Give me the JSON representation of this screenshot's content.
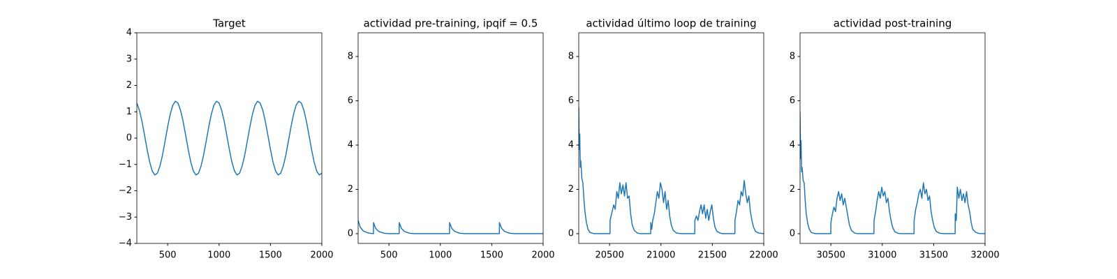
{
  "chart_data": [
    {
      "type": "line",
      "title": "Target",
      "x": [
        200,
        225,
        250,
        275,
        300,
        325,
        350,
        375,
        400,
        425,
        450,
        475,
        500,
        525,
        550,
        575,
        600,
        625,
        650,
        675,
        700,
        725,
        750,
        775,
        800,
        825,
        850,
        875,
        900,
        925,
        950,
        975,
        1000,
        1025,
        1050,
        1075,
        1100,
        1125,
        1150,
        1175,
        1200,
        1225,
        1250,
        1275,
        1300,
        1325,
        1350,
        1375,
        1400,
        1425,
        1450,
        1475,
        1500,
        1525,
        1550,
        1575,
        1600,
        1625,
        1650,
        1675,
        1700,
        1725,
        1750,
        1775,
        1800,
        1825,
        1850,
        1875,
        1900,
        1925,
        1950,
        1975,
        2000
      ],
      "series": [
        {
          "color": "#1f77b4",
          "values": [
            1.33,
            1.06,
            0.64,
            0.11,
            -0.43,
            -0.91,
            -1.25,
            -1.4,
            -1.33,
            -1.06,
            -0.64,
            -0.11,
            0.43,
            0.91,
            1.25,
            1.4,
            1.33,
            1.06,
            0.64,
            0.11,
            -0.43,
            -0.91,
            -1.25,
            -1.4,
            -1.33,
            -1.06,
            -0.64,
            -0.11,
            0.43,
            0.91,
            1.25,
            1.4,
            1.33,
            1.06,
            0.64,
            0.11,
            -0.43,
            -0.91,
            -1.25,
            -1.4,
            -1.33,
            -1.06,
            -0.64,
            -0.11,
            0.43,
            0.91,
            1.25,
            1.4,
            1.33,
            1.06,
            0.64,
            0.11,
            -0.43,
            -0.91,
            -1.25,
            -1.4,
            -1.33,
            -1.06,
            -0.64,
            -0.11,
            0.43,
            0.91,
            1.25,
            1.4,
            1.33,
            1.06,
            0.64,
            0.11,
            -0.43,
            -0.91,
            -1.25,
            -1.4,
            -1.33
          ]
        }
      ],
      "xlim": [
        200,
        2000
      ],
      "xticks": [
        500,
        1000,
        1500,
        2000
      ],
      "ylim": [
        -4,
        4
      ],
      "yticks": [
        {
          "value": -4,
          "label": "−4"
        },
        {
          "value": -3,
          "label": "−3"
        },
        {
          "value": -2,
          "label": "−2"
        },
        {
          "value": -1,
          "label": "−1"
        },
        0,
        1,
        2,
        3,
        4
      ]
    },
    {
      "type": "line",
      "title": "actividad pre-training, ipqif = 0.5",
      "x": [
        200,
        220,
        250,
        300,
        349,
        350,
        370,
        400,
        450,
        500,
        599,
        600,
        620,
        650,
        700,
        750,
        1089,
        1090,
        1110,
        1140,
        1190,
        1240,
        1574,
        1575,
        1595,
        1625,
        1675,
        1725,
        2000
      ],
      "series": [
        {
          "color": "#1f77b4",
          "values": [
            0.6,
            0.3,
            0.12,
            0.03,
            0,
            0.5,
            0.25,
            0.1,
            0.02,
            0,
            0,
            0.5,
            0.25,
            0.1,
            0.02,
            0,
            0,
            0.5,
            0.25,
            0.1,
            0.02,
            0,
            0,
            0.5,
            0.25,
            0.1,
            0.02,
            0,
            0
          ]
        }
      ],
      "xlim": [
        200,
        2000
      ],
      "xticks": [
        500,
        1000,
        1500,
        2000
      ],
      "ylim": [
        -0.44,
        9.07
      ],
      "yticks": [
        0,
        2,
        4,
        6,
        8
      ]
    },
    {
      "type": "line",
      "title": "actividad último loop de training",
      "x": [
        20200,
        20205,
        20210,
        20215,
        20220,
        20230,
        20240,
        20250,
        20260,
        20275,
        20290,
        20310,
        20350,
        20504,
        20505,
        20520,
        20540,
        20555,
        20570,
        20585,
        20600,
        20615,
        20630,
        20645,
        20660,
        20675,
        20690,
        20705,
        20720,
        20740,
        20770,
        20800,
        20900,
        20901,
        20910,
        20920,
        20935,
        20950,
        20965,
        20980,
        20995,
        21010,
        21025,
        21040,
        21055,
        21070,
        21085,
        21100,
        21120,
        21150,
        21200,
        21329,
        21330,
        21345,
        21360,
        21375,
        21390,
        21405,
        21420,
        21435,
        21450,
        21465,
        21480,
        21495,
        21510,
        21525,
        21545,
        21580,
        21600,
        21719,
        21720,
        21735,
        21750,
        21765,
        21780,
        21795,
        21810,
        21825,
        21840,
        21855,
        21870,
        21885,
        21900,
        21920,
        21950,
        22000
      ],
      "series": [
        {
          "color": "#1f77b4",
          "values": [
            5.7,
            3.8,
            4.5,
            3.0,
            3.3,
            2.5,
            2.3,
            1.6,
            1.0,
            0.5,
            0.2,
            0.05,
            0,
            0,
            0.6,
            0.9,
            1.3,
            1.1,
            1.9,
            1.6,
            2.3,
            1.8,
            2.2,
            1.7,
            2.3,
            1.6,
            1.7,
            0.9,
            0.4,
            0.15,
            0.03,
            0,
            0,
            0.5,
            0.2,
            0.6,
            0.9,
            1.4,
            1.9,
            1.6,
            2.3,
            2.0,
            1.4,
            1.9,
            1.1,
            1.5,
            0.8,
            0.4,
            0.15,
            0.03,
            0,
            0,
            0.6,
            0.8,
            0.6,
            1.0,
            1.3,
            0.9,
            1.3,
            0.7,
            1.1,
            0.6,
            1.0,
            1.3,
            0.7,
            0.3,
            0.1,
            0.02,
            0,
            0,
            0.6,
            1.0,
            1.5,
            1.3,
            1.9,
            1.7,
            2.4,
            1.8,
            1.4,
            1.7,
            1.0,
            0.6,
            0.3,
            0.1,
            0.03,
            0
          ]
        }
      ],
      "xlim": [
        20200,
        22000
      ],
      "xticks": [
        20500,
        21000,
        21500,
        22000
      ],
      "ylim": [
        -0.44,
        9.07
      ],
      "yticks": [
        0,
        2,
        4,
        6,
        8
      ]
    },
    {
      "type": "line",
      "title": "actividad post-training",
      "x": [
        30200,
        30205,
        30210,
        30215,
        30220,
        30230,
        30240,
        30250,
        30260,
        30275,
        30290,
        30310,
        30350,
        30499,
        30500,
        30515,
        30530,
        30545,
        30560,
        30575,
        30590,
        30605,
        30620,
        30635,
        30650,
        30665,
        30680,
        30700,
        30730,
        30760,
        30919,
        30920,
        30935,
        30950,
        30965,
        30980,
        30995,
        31010,
        31025,
        31040,
        31055,
        31070,
        31085,
        31100,
        31120,
        31150,
        31180,
        31309,
        31310,
        31325,
        31340,
        31355,
        31370,
        31385,
        31400,
        31415,
        31430,
        31445,
        31460,
        31475,
        31490,
        31505,
        31525,
        31560,
        31600,
        31709,
        31710,
        31720,
        31730,
        31745,
        31760,
        31775,
        31790,
        31805,
        31820,
        31835,
        31850,
        31865,
        31880,
        31905,
        31940,
        32000
      ],
      "series": [
        {
          "color": "#1f77b4",
          "values": [
            5.5,
            3.4,
            4.2,
            2.8,
            3.0,
            2.4,
            2.3,
            1.5,
            0.9,
            0.45,
            0.2,
            0.05,
            0,
            0,
            0.5,
            0.9,
            1.2,
            1.0,
            1.6,
            1.9,
            1.5,
            1.8,
            1.3,
            1.6,
            1.2,
            0.8,
            0.4,
            0.15,
            0.03,
            0,
            0,
            0.6,
            1.0,
            1.5,
            1.9,
            1.6,
            2.1,
            1.7,
            1.9,
            1.4,
            1.6,
            1.0,
            0.6,
            0.3,
            0.1,
            0.02,
            0,
            0,
            0.6,
            1.1,
            1.4,
            1.8,
            2.0,
            1.6,
            2.3,
            1.8,
            2.0,
            1.5,
            1.7,
            1.0,
            0.6,
            0.3,
            0.1,
            0.02,
            0,
            0,
            0.9,
            0.6,
            2.1,
            1.6,
            2.0,
            1.5,
            1.8,
            1.4,
            1.9,
            1.3,
            1.0,
            0.5,
            0.2,
            0.07,
            0.01,
            0
          ]
        }
      ],
      "xlim": [
        30200,
        32000
      ],
      "xticks": [
        30500,
        31000,
        31500,
        32000
      ],
      "ylim": [
        -0.44,
        9.07
      ],
      "yticks": [
        0,
        2,
        4,
        6,
        8
      ]
    }
  ]
}
